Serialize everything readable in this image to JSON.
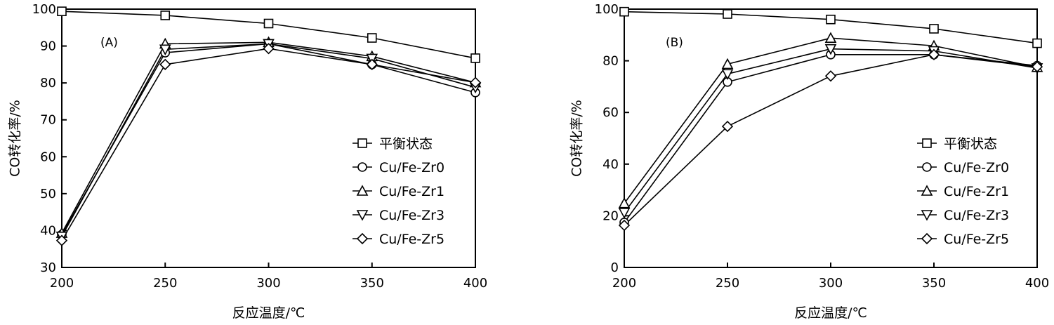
{
  "chart_data": [
    {
      "type": "line",
      "panel_label": "(A)",
      "xlabel": "反应温度/℃",
      "ylabel": "CO转化率/%",
      "xlim": [
        200,
        400
      ],
      "ylim": [
        30,
        100
      ],
      "xticks": [
        200,
        250,
        300,
        350,
        400
      ],
      "yticks": [
        30,
        40,
        50,
        60,
        70,
        80,
        90,
        100
      ],
      "x": [
        200,
        250,
        300,
        350,
        400
      ],
      "legend_position": "lower-right",
      "series": [
        {
          "name": "平衡状态",
          "marker": "square",
          "values": [
            99.4,
            98.3,
            96.1,
            92.2,
            86.7
          ]
        },
        {
          "name": "Cu/Fe-Zr0",
          "marker": "circle",
          "values": [
            38.9,
            88.2,
            90.6,
            85.0,
            77.4
          ]
        },
        {
          "name": "Cu/Fe-Zr1",
          "marker": "triangle-up",
          "values": [
            39.3,
            90.6,
            91.0,
            87.2,
            80.1
          ]
        },
        {
          "name": "Cu/Fe-Zr3",
          "marker": "triangle-down",
          "values": [
            38.4,
            89.1,
            90.6,
            86.6,
            78.8
          ]
        },
        {
          "name": "Cu/Fe-Zr5",
          "marker": "diamond",
          "values": [
            37.3,
            85.0,
            89.3,
            85.0,
            80.1
          ]
        }
      ]
    },
    {
      "type": "line",
      "panel_label": "(B)",
      "xlabel": "反应温度/℃",
      "ylabel": "CO转化率/%",
      "xlim": [
        200,
        400
      ],
      "ylim": [
        0,
        100
      ],
      "xticks": [
        200,
        250,
        300,
        350,
        400
      ],
      "yticks": [
        0,
        20,
        40,
        60,
        80,
        100
      ],
      "x": [
        200,
        250,
        300,
        350,
        400
      ],
      "legend_position": "lower-right",
      "series": [
        {
          "name": "平衡状态",
          "marker": "square",
          "values": [
            99.0,
            98.1,
            96.0,
            92.4,
            86.8
          ]
        },
        {
          "name": "Cu/Fe-Zr0",
          "marker": "circle",
          "values": [
            17.4,
            71.8,
            82.4,
            82.4,
            78.1
          ]
        },
        {
          "name": "Cu/Fe-Zr1",
          "marker": "triangle-up",
          "values": [
            24.8,
            78.7,
            88.8,
            85.8,
            77.5
          ]
        },
        {
          "name": "Cu/Fe-Zr3",
          "marker": "triangle-down",
          "values": [
            21.2,
            74.9,
            84.6,
            83.8,
            77.2
          ]
        },
        {
          "name": "Cu/Fe-Zr5",
          "marker": "diamond",
          "values": [
            16.3,
            54.6,
            74.1,
            82.4,
            77.7
          ]
        }
      ]
    }
  ]
}
